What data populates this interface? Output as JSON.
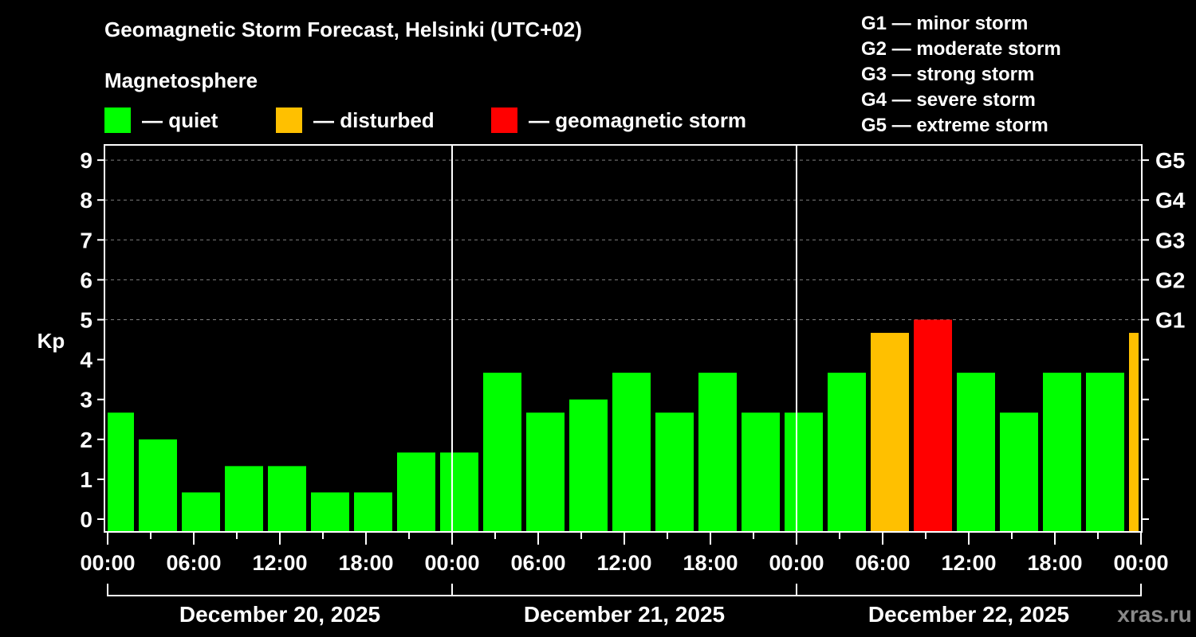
{
  "header": {
    "title": "Geomagnetic Storm Forecast, Helsinki (UTC+02)",
    "subtitle": "Magnetosphere"
  },
  "legend": {
    "items": [
      {
        "label": "— quiet",
        "color": "#00ff00"
      },
      {
        "label": "— disturbed",
        "color": "#ffc000"
      },
      {
        "label": "— geomagnetic storm",
        "color": "#ff0000"
      }
    ]
  },
  "g_scale_legend": {
    "items": [
      "G1 — minor storm",
      "G2 — moderate storm",
      "G3 — strong storm",
      "G4 — severe storm",
      "G5 — extreme storm"
    ]
  },
  "axis": {
    "y_label": "Kp",
    "y_ticks": [
      "0",
      "1",
      "2",
      "3",
      "4",
      "5",
      "6",
      "7",
      "8",
      "9"
    ],
    "right_ticks": [
      {
        "kp": 5,
        "label": "G1"
      },
      {
        "kp": 6,
        "label": "G2"
      },
      {
        "kp": 7,
        "label": "G3"
      },
      {
        "kp": 8,
        "label": "G4"
      },
      {
        "kp": 9,
        "label": "G5"
      }
    ],
    "x_ticks": [
      "00:00",
      "06:00",
      "12:00",
      "18:00",
      "00:00",
      "06:00",
      "12:00",
      "18:00",
      "00:00",
      "06:00",
      "12:00",
      "18:00",
      "00:00"
    ],
    "dates": [
      "December 20, 2025",
      "December 21, 2025",
      "December 22, 2025"
    ]
  },
  "watermark": "xras.ru",
  "colors": {
    "quiet": "#00ff00",
    "disturbed": "#ffc000",
    "storm": "#ff0000",
    "grid": "#808080",
    "axis": "#ffffff",
    "background": "#000000"
  },
  "chart_data": {
    "type": "bar",
    "title": "Geomagnetic Storm Forecast, Helsinki (UTC+02)",
    "subtitle": "Magnetosphere",
    "xlabel": "",
    "ylabel": "Kp",
    "ylim": [
      0,
      9
    ],
    "grid": "dashed horizontal at Kp 5-9",
    "legend_position": "top",
    "categories": [
      "Dec 20 00:00",
      "Dec 20 03:00",
      "Dec 20 06:00",
      "Dec 20 09:00",
      "Dec 20 12:00",
      "Dec 20 15:00",
      "Dec 20 18:00",
      "Dec 20 21:00",
      "Dec 21 00:00",
      "Dec 21 03:00",
      "Dec 21 06:00",
      "Dec 21 09:00",
      "Dec 21 12:00",
      "Dec 21 15:00",
      "Dec 21 18:00",
      "Dec 21 21:00",
      "Dec 22 00:00",
      "Dec 22 03:00",
      "Dec 22 06:00",
      "Dec 22 09:00",
      "Dec 22 12:00",
      "Dec 22 15:00",
      "Dec 22 18:00",
      "Dec 22 21:00",
      "Dec 23 00:00"
    ],
    "values": [
      2.67,
      2.0,
      0.67,
      1.33,
      1.33,
      0.67,
      0.67,
      1.67,
      1.67,
      3.67,
      2.67,
      3.0,
      3.67,
      2.67,
      3.67,
      2.67,
      2.67,
      3.67,
      4.67,
      5.0,
      3.67,
      2.67,
      3.67,
      3.67,
      4.67
    ],
    "status": [
      "quiet",
      "quiet",
      "quiet",
      "quiet",
      "quiet",
      "quiet",
      "quiet",
      "quiet",
      "quiet",
      "quiet",
      "quiet",
      "quiet",
      "quiet",
      "quiet",
      "quiet",
      "quiet",
      "quiet",
      "quiet",
      "disturbed",
      "storm",
      "quiet",
      "quiet",
      "quiet",
      "quiet",
      "disturbed"
    ],
    "secondary_axis": {
      "labels": [
        "G1",
        "G2",
        "G3",
        "G4",
        "G5"
      ],
      "kp": [
        5,
        6,
        7,
        8,
        9
      ]
    }
  }
}
